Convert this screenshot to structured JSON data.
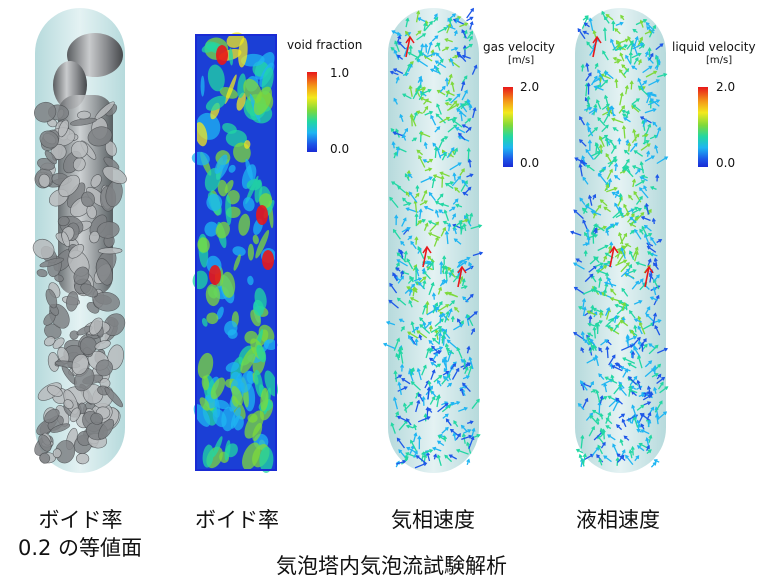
{
  "legends": {
    "void": {
      "title": "void fraction",
      "max": "1.0",
      "min": "0.0"
    },
    "gas": {
      "title": "gas velocity",
      "unit": "[m/s]",
      "max": "2.0",
      "min": "0.0"
    },
    "liquid": {
      "title": "liquid velocity",
      "unit": "[m/s]",
      "max": "2.0",
      "min": "0.0"
    }
  },
  "captions": {
    "isosurface_line1": "ボイド率",
    "isosurface_line2": "0.2 の等値面",
    "void": "ボイド率",
    "gas": "気相速度",
    "liquid": "液相速度"
  },
  "title": "気泡塔内気泡流試験解析",
  "colors": {
    "colormap": [
      "#e8171a",
      "#f49a18",
      "#f3e91d",
      "#7ed93b",
      "#22d7a3",
      "#1fb5f2",
      "#1d57e8",
      "#1a2bd4"
    ],
    "tube": "#cfe6e8",
    "void_background": "#1b3fd6"
  }
}
